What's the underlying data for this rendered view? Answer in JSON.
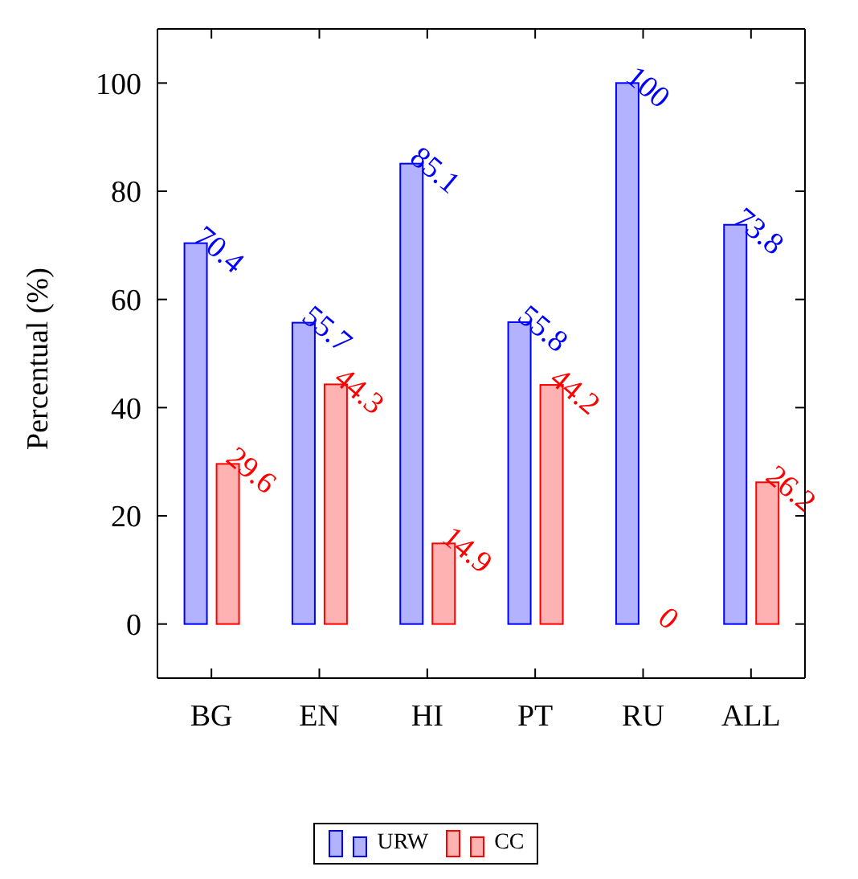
{
  "chart_data": {
    "type": "bar",
    "ylabel": "Percentual (%)",
    "categories": [
      "BG",
      "EN",
      "HI",
      "PT",
      "RU",
      "ALL"
    ],
    "series": [
      {
        "name": "URW",
        "color": "#0000ff",
        "values": [
          70.4,
          55.7,
          85.1,
          55.8,
          100,
          73.8
        ]
      },
      {
        "name": "CC",
        "color": "#ff0000",
        "values": [
          29.6,
          44.3,
          14.9,
          44.2,
          0,
          26.2
        ]
      }
    ],
    "ylim": [
      -10,
      110
    ],
    "yticks": [
      0,
      20,
      40,
      60,
      80,
      100
    ],
    "data_labels": true,
    "legend": "bottom",
    "grid": false
  }
}
